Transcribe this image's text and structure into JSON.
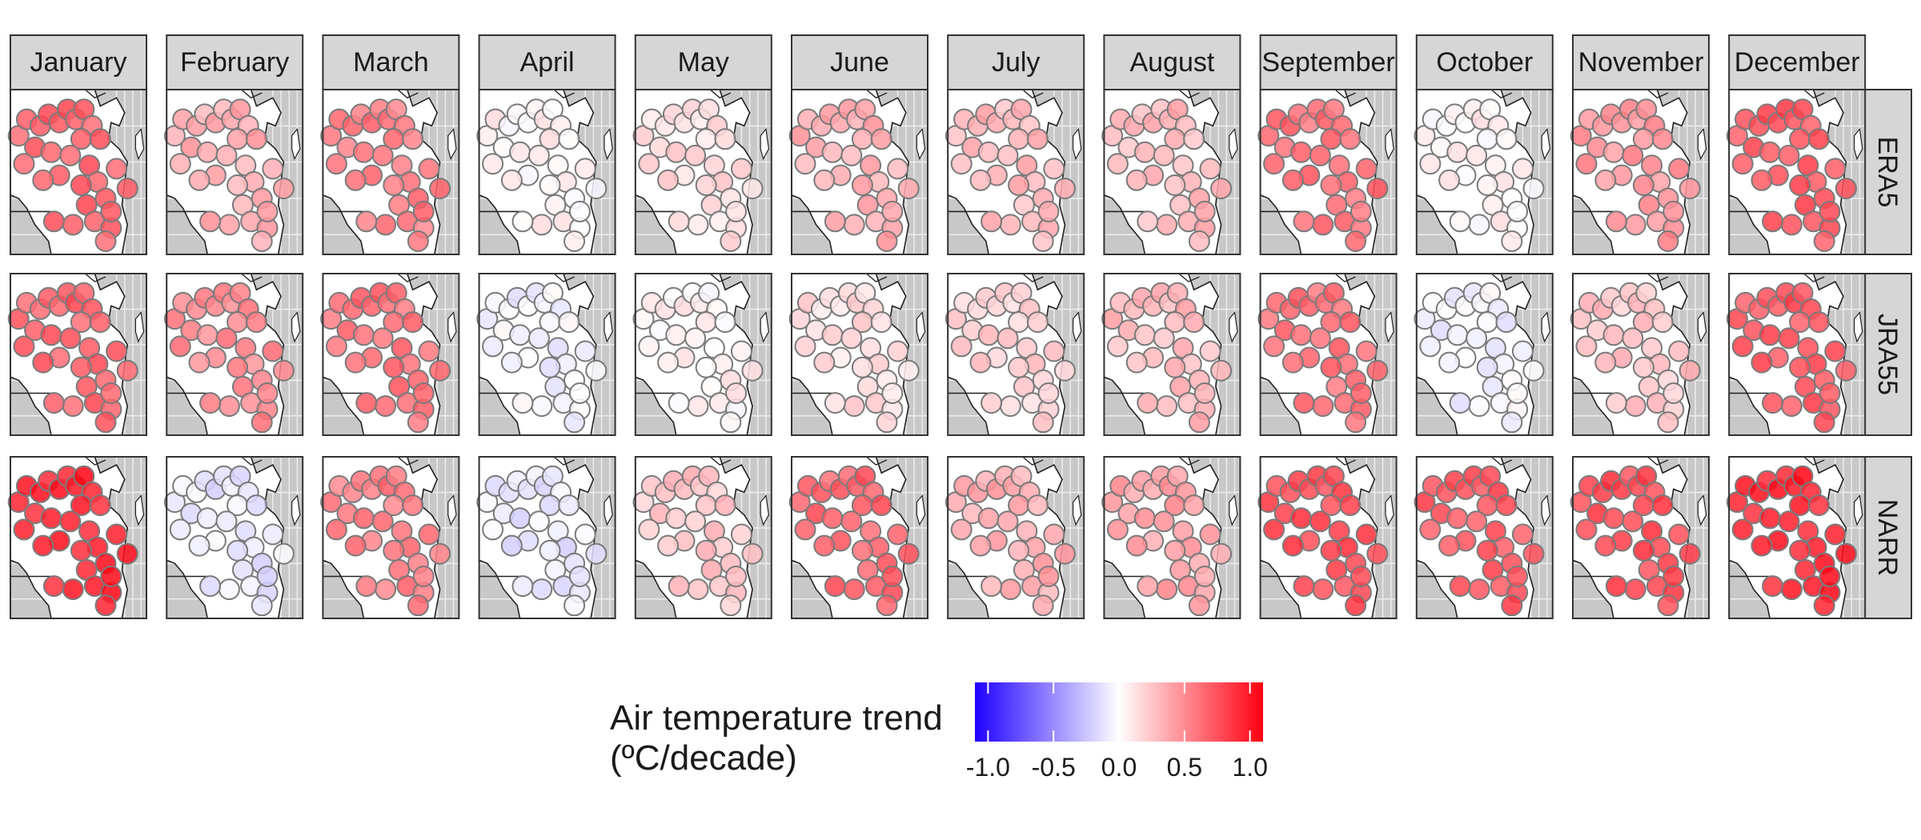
{
  "months": [
    "January",
    "February",
    "March",
    "April",
    "May",
    "June",
    "July",
    "August",
    "September",
    "October",
    "November",
    "December"
  ],
  "datasets": [
    "ERA5",
    "JRA55",
    "NARR"
  ],
  "legend": {
    "title_line1": "Air temperature trend",
    "title_line2": "(ºC/decade)",
    "ticks": [
      "-1.0",
      "-0.5",
      "0.0",
      "0.5",
      "1.0"
    ],
    "tick_values": [
      -1.0,
      -0.5,
      0.0,
      0.5,
      1.0
    ],
    "range": [
      -1.1,
      1.1
    ],
    "color_low": "#1f00ff",
    "color_mid": "#ffffff",
    "color_high": "#ff0010"
  },
  "colors": {
    "strip_fill": "#d6d6d6",
    "land_fill": "#ffffff",
    "water_fill": "#c8c8c8",
    "point_stroke": "#7a7a7a",
    "border": "#333333"
  },
  "chart_data": {
    "type": "map",
    "facets_cols": "month",
    "facets_rows": "reanalysis",
    "panel_mean_trend": {
      "ERA5": [
        0.65,
        0.35,
        0.55,
        0.05,
        0.15,
        0.35,
        0.3,
        0.3,
        0.6,
        0.05,
        0.45,
        0.7
      ],
      "JRA55": [
        0.65,
        0.5,
        0.6,
        -0.05,
        0.05,
        0.15,
        0.2,
        0.3,
        0.6,
        -0.05,
        0.25,
        0.7
      ],
      "NARR": [
        0.9,
        -0.1,
        0.55,
        -0.1,
        0.25,
        0.65,
        0.35,
        0.4,
        0.75,
        0.7,
        0.75,
        0.9
      ]
    }
  }
}
